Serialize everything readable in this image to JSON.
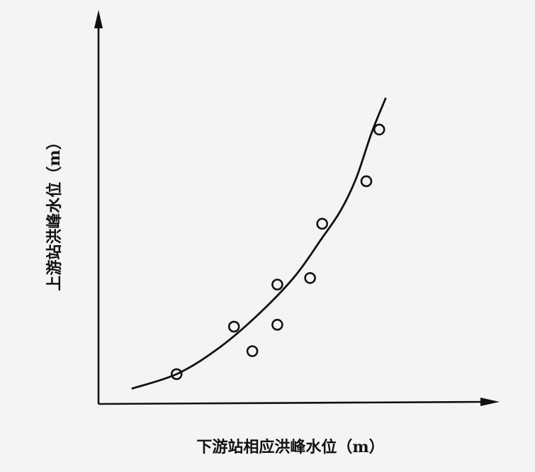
{
  "chart_data": {
    "type": "scatter",
    "title": "",
    "xlabel": "下游站相应洪峰水位（m）",
    "ylabel": "上游站洪峰水位（m）",
    "x_ticks": [],
    "y_ticks": [],
    "xlim": [
      0,
      100
    ],
    "ylim": [
      0,
      100
    ],
    "grid": false,
    "legend": "none",
    "series": [
      {
        "type": "scatter",
        "marker": "open-circle",
        "x": [
          20.0,
          34.7,
          39.4,
          45.8,
          45.8,
          54.2,
          57.3,
          68.6,
          71.9
        ],
        "y": [
          7.8,
          20.2,
          13.8,
          20.7,
          31.2,
          32.9,
          47.1,
          58.2,
          71.7
        ]
      },
      {
        "type": "line",
        "style": "smooth-fit",
        "x": [
          8.5,
          20,
          30,
          40,
          50,
          57,
          62,
          66,
          70,
          73.6
        ],
        "y": [
          4.0,
          7.8,
          14.0,
          22.5,
          33.0,
          43.0,
          50.5,
          59.0,
          71.0,
          80.0
        ]
      }
    ],
    "colors": {
      "axis": "#111111",
      "marks": "#111111",
      "background": "#f4f4f2"
    }
  }
}
